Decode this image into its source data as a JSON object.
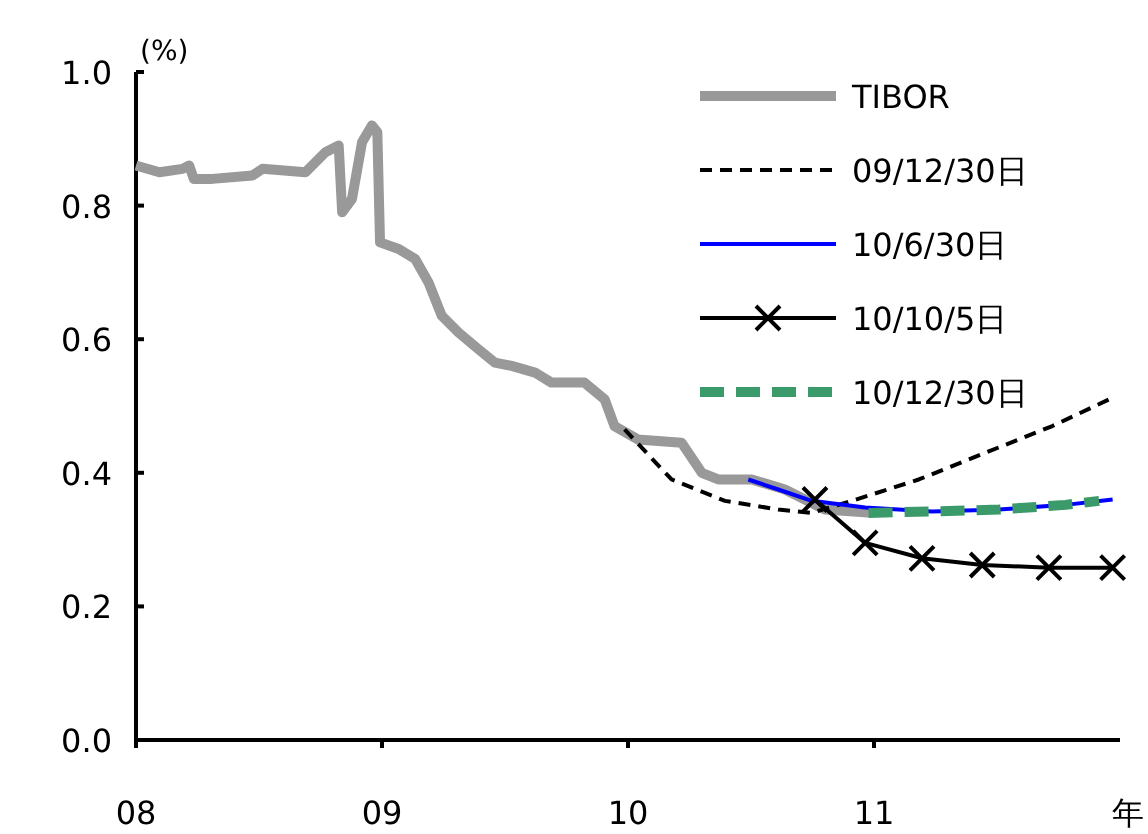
{
  "chart_data": {
    "type": "line",
    "ylabel": "(%)",
    "xlabel": "年",
    "xlim": [
      2008,
      2012
    ],
    "ylim": [
      0,
      1
    ],
    "xticks": [
      {
        "value": 2008,
        "label": "08"
      },
      {
        "value": 2009,
        "label": "09"
      },
      {
        "value": 2010,
        "label": "10"
      },
      {
        "value": 2011,
        "label": "11"
      }
    ],
    "yticks": [
      {
        "value": 0,
        "label": "0.0"
      },
      {
        "value": 0.2,
        "label": "0.2"
      },
      {
        "value": 0.4,
        "label": "0.4"
      },
      {
        "value": 0.6,
        "label": "0.6"
      },
      {
        "value": 0.8,
        "label": "0.8"
      },
      {
        "value": 1,
        "label": "1.0"
      }
    ],
    "legend": "top right",
    "grid": false,
    "series": [
      {
        "name": "TIBOR",
        "color": "#999999",
        "line_style": "solid",
        "x": [
          2008.0,
          2008.095,
          2008.189,
          2008.216,
          2008.235,
          2008.311,
          2008.473,
          2008.514,
          2008.689,
          2008.77,
          2008.824,
          2008.838,
          2008.878,
          2008.919,
          2008.959,
          2008.981,
          2008.992,
          2009.068,
          2009.135,
          2009.189,
          2009.243,
          2009.311,
          2009.392,
          2009.459,
          2009.527,
          2009.622,
          2009.689,
          2009.757,
          2009.823,
          2009.905,
          2009.945,
          2010.04,
          2010.218,
          2010.3,
          2010.367,
          2010.503,
          2010.638,
          2010.8,
          2010.99
        ],
        "values": [
          0.86,
          0.85,
          0.855,
          0.86,
          0.84,
          0.84,
          0.845,
          0.855,
          0.85,
          0.88,
          0.89,
          0.79,
          0.81,
          0.895,
          0.92,
          0.91,
          0.745,
          0.735,
          0.72,
          0.685,
          0.635,
          0.61,
          0.585,
          0.565,
          0.56,
          0.55,
          0.535,
          0.535,
          0.535,
          0.51,
          0.47,
          0.45,
          0.445,
          0.4,
          0.39,
          0.39,
          0.375,
          0.345,
          0.34
        ]
      },
      {
        "name": "09/12/30日",
        "color": "#000000",
        "line_style": "dashed",
        "x": [
          2009.986,
          2010.177,
          2010.394,
          2010.611,
          2010.747,
          2010.91,
          2011.182,
          2011.453,
          2011.725,
          2011.956
        ],
        "values": [
          0.465,
          0.39,
          0.358,
          0.345,
          0.34,
          0.358,
          0.39,
          0.43,
          0.47,
          0.51
        ]
      },
      {
        "name": "10/6/30日",
        "color": "#0000ff",
        "line_style": "solid",
        "x": [
          2010.489,
          2010.611,
          2010.747,
          2010.964,
          2011.236,
          2011.508,
          2011.779,
          2011.97
        ],
        "values": [
          0.39,
          0.375,
          0.358,
          0.348,
          0.342,
          0.345,
          0.352,
          0.36
        ]
      },
      {
        "name": "10/10/5日",
        "color": "#000000",
        "line_style": "solid",
        "marker": "cross",
        "x": [
          2010.76,
          2010.964,
          2011.195,
          2011.44,
          2011.711,
          2011.97
        ],
        "values": [
          0.36,
          0.295,
          0.272,
          0.262,
          0.258,
          0.258
        ]
      },
      {
        "name": "10/12/30日",
        "color": "#3a9a6a",
        "line_style": "dashed",
        "x": [
          2010.978,
          2011.236,
          2011.508,
          2011.779,
          2011.915
        ],
        "values": [
          0.34,
          0.342,
          0.345,
          0.352,
          0.358
        ]
      }
    ]
  }
}
